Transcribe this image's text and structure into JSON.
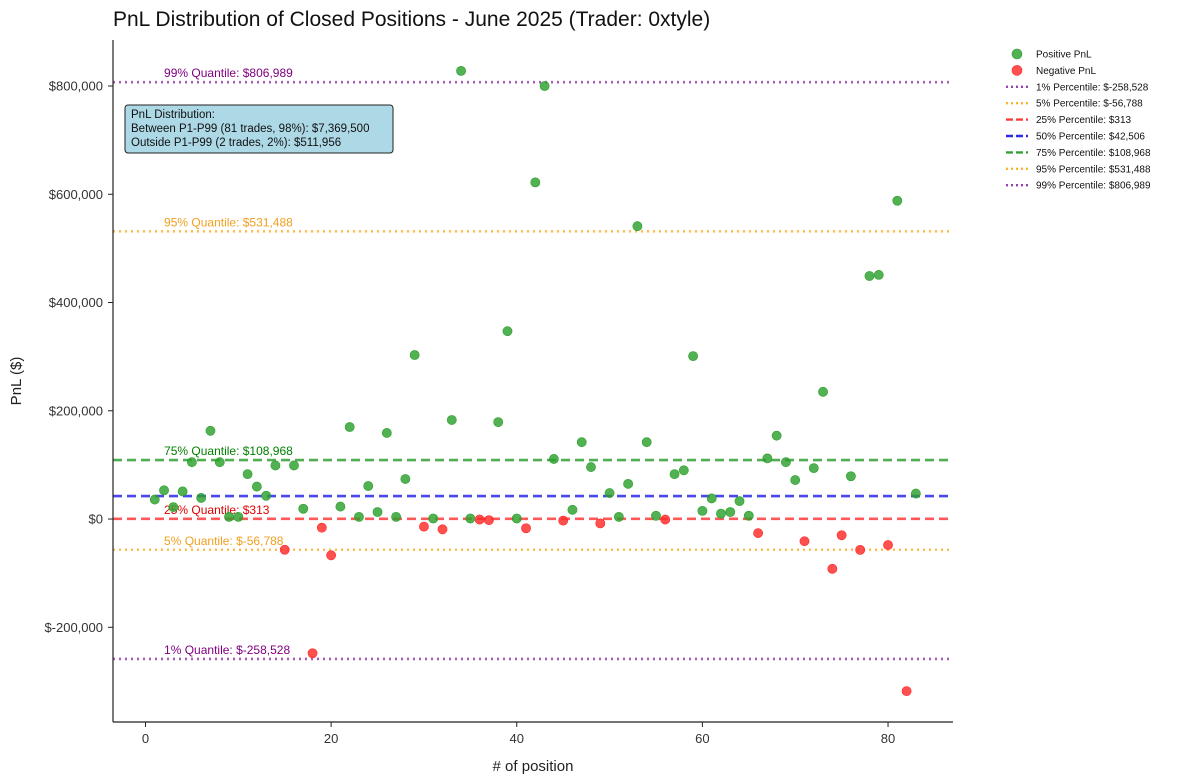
{
  "chart_data": {
    "type": "scatter",
    "title": "PnL Distribution of Closed Positions - June 2025 (Trader: 0xtyle)",
    "xlabel": "# of position",
    "ylabel": "PnL ($)",
    "xlim": [
      -3.5,
      87
    ],
    "ylim": [
      -375000,
      885000
    ],
    "xticks": [
      0,
      20,
      40,
      60,
      80
    ],
    "xtick_labels": [
      "0",
      "20",
      "40",
      "60",
      "80"
    ],
    "yticks": [
      -200000,
      0,
      200000,
      400000,
      600000,
      800000
    ],
    "ytick_labels": [
      "$-200,000",
      "$0",
      "$200,000",
      "$400,000",
      "$600,000",
      "$800,000"
    ],
    "colors": {
      "positive": "#2ca02c",
      "negative": "#ff2a2a",
      "purple": "#9b3fb0",
      "orange": "#ffb02e",
      "red": "#ff3b3b",
      "blue": "#2a2ae8",
      "green": "#35a035",
      "purple_text": "#800080",
      "orange_text": "#f0a020",
      "red_text": "#e00000",
      "green_text": "#008000",
      "info_bg": "#add8e6"
    },
    "series": [
      {
        "name": "Positive PnL",
        "color": "#2ca02c",
        "points": [
          [
            1,
            36000
          ],
          [
            2,
            53000
          ],
          [
            3,
            22000
          ],
          [
            4,
            51000
          ],
          [
            5,
            105000
          ],
          [
            6,
            39000
          ],
          [
            7,
            163000
          ],
          [
            8,
            105000
          ],
          [
            9,
            4000
          ],
          [
            10,
            4000
          ],
          [
            11,
            83000
          ],
          [
            12,
            60000
          ],
          [
            13,
            43000
          ],
          [
            14,
            99000
          ],
          [
            16,
            99000
          ],
          [
            17,
            19000
          ],
          [
            21,
            23000
          ],
          [
            22,
            170000
          ],
          [
            23,
            4000
          ],
          [
            24,
            61000
          ],
          [
            25,
            13000
          ],
          [
            26,
            159000
          ],
          [
            27,
            4000
          ],
          [
            28,
            74000
          ],
          [
            29,
            303000
          ],
          [
            31,
            1000
          ],
          [
            33,
            183000
          ],
          [
            34,
            828000
          ],
          [
            35,
            1000
          ],
          [
            38,
            179000
          ],
          [
            39,
            347000
          ],
          [
            40,
            1000
          ],
          [
            42,
            622000
          ],
          [
            43,
            800000
          ],
          [
            44,
            111000
          ],
          [
            46,
            17000
          ],
          [
            47,
            142000
          ],
          [
            48,
            96000
          ],
          [
            50,
            48000
          ],
          [
            51,
            4000
          ],
          [
            52,
            65000
          ],
          [
            53,
            541000
          ],
          [
            54,
            142000
          ],
          [
            55,
            6000
          ],
          [
            57,
            83000
          ],
          [
            58,
            90000
          ],
          [
            59,
            301000
          ],
          [
            60,
            15000
          ],
          [
            61,
            38000
          ],
          [
            62,
            10000
          ],
          [
            63,
            13000
          ],
          [
            64,
            33000
          ],
          [
            65,
            6000
          ],
          [
            67,
            112000
          ],
          [
            68,
            154000
          ],
          [
            69,
            105000
          ],
          [
            70,
            72000
          ],
          [
            72,
            94000
          ],
          [
            73,
            235000
          ],
          [
            76,
            79000
          ],
          [
            78,
            449000
          ],
          [
            79,
            451000
          ],
          [
            81,
            588000
          ],
          [
            83,
            47000
          ]
        ]
      },
      {
        "name": "Negative PnL",
        "color": "#ff2a2a",
        "points": [
          [
            15,
            -56788
          ],
          [
            18,
            -248000
          ],
          [
            19,
            -16000
          ],
          [
            20,
            -67000
          ],
          [
            30,
            -14000
          ],
          [
            32,
            -19000
          ],
          [
            36,
            -1000
          ],
          [
            37,
            -2000
          ],
          [
            41,
            -17000
          ],
          [
            45,
            -3000
          ],
          [
            49,
            -8000
          ],
          [
            56,
            -1000
          ],
          [
            66,
            -26000
          ],
          [
            71,
            -41000
          ],
          [
            74,
            -92000
          ],
          [
            75,
            -30000
          ],
          [
            77,
            -57000
          ],
          [
            80,
            -48000
          ],
          [
            82,
            -318000
          ]
        ]
      }
    ],
    "percentiles": [
      {
        "label": "1% Percentile: $-258,528",
        "value": -258528,
        "style": "dotted",
        "color": "#9b3fb0"
      },
      {
        "label": "5% Percentile: $-56,788",
        "value": -56788,
        "style": "dotted",
        "color": "#ffb02e"
      },
      {
        "label": "25% Percentile: $313",
        "value": 313,
        "style": "dashed",
        "color": "#ff3b3b"
      },
      {
        "label": "50% Percentile: $42,506",
        "value": 42506,
        "style": "dashed",
        "color": "#2a2ae8"
      },
      {
        "label": "75% Percentile: $108,968",
        "value": 108968,
        "style": "dashed",
        "color": "#35a035"
      },
      {
        "label": "95% Percentile: $531,488",
        "value": 531488,
        "style": "dotted",
        "color": "#ffb02e"
      },
      {
        "label": "99% Percentile: $806,989",
        "value": 806989,
        "style": "dotted",
        "color": "#9b3fb0"
      }
    ],
    "quantile_annotations": [
      {
        "text": "99% Quantile: $806,989",
        "value": 806989,
        "color": "#800080"
      },
      {
        "text": "95% Quantile: $531,488",
        "value": 531488,
        "color": "#f0a020"
      },
      {
        "text": "75% Quantile: $108,968",
        "value": 108968,
        "color": "#008000"
      },
      {
        "text": "25% Quantile: $313",
        "value": 313,
        "color": "#e00000"
      },
      {
        "text": "5% Quantile: $-56,788",
        "value": -56788,
        "color": "#f0a020"
      },
      {
        "text": "1% Quantile: $-258,528",
        "value": -258528,
        "color": "#800080"
      }
    ],
    "info_box": {
      "lines": [
        "PnL Distribution:",
        "Between P1-P99 (81 trades, 98%): $7,369,500",
        "Outside P1-P99 (2 trades, 2%): $511,956"
      ]
    },
    "legend_position": "outside-top-right"
  }
}
